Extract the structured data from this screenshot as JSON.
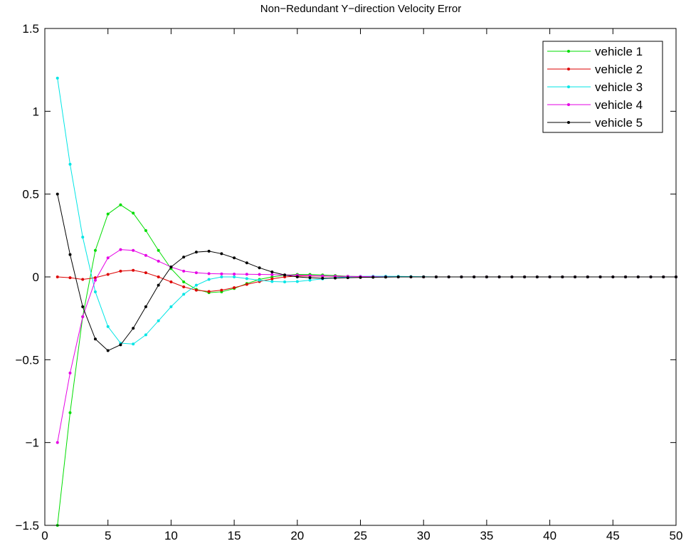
{
  "chart_data": {
    "type": "line",
    "title": "Non−Redundant Y−direction Velocity Error",
    "xlabel": "",
    "ylabel": "",
    "xlim": [
      0,
      50
    ],
    "ylim": [
      -1.5,
      1.5
    ],
    "xticks": [
      0,
      5,
      10,
      15,
      20,
      25,
      30,
      35,
      40,
      45,
      50
    ],
    "xtick_labels": [
      "0",
      "5",
      "10",
      "15",
      "20",
      "25",
      "30",
      "35",
      "40",
      "45",
      "50"
    ],
    "yticks": [
      -1.5,
      -1,
      -0.5,
      0,
      0.5,
      1,
      1.5
    ],
    "ytick_labels": [
      "−1.5",
      "−1",
      "−0.5",
      "0",
      "0.5",
      "1",
      "1.5"
    ],
    "grid": false,
    "legend_position": "top-right",
    "x": [
      1,
      2,
      3,
      4,
      5,
      6,
      7,
      8,
      9,
      10,
      11,
      12,
      13,
      14,
      15,
      16,
      17,
      18,
      19,
      20,
      21,
      22,
      23,
      24,
      25,
      26,
      27,
      28,
      29,
      30,
      31,
      32,
      33,
      34,
      35,
      36,
      37,
      38,
      39,
      40,
      41,
      42,
      43,
      44,
      45,
      46,
      47,
      48,
      49,
      50
    ],
    "series": [
      {
        "name": "vehicle 1",
        "color": "#00dd00",
        "values": [
          -1.5,
          -0.82,
          -0.24,
          0.16,
          0.38,
          0.435,
          0.385,
          0.28,
          0.16,
          0.05,
          -0.03,
          -0.075,
          -0.095,
          -0.09,
          -0.07,
          -0.04,
          -0.015,
          0.0,
          0.01,
          0.015,
          0.015,
          0.012,
          0.008,
          0.004,
          0.002,
          0.001,
          0,
          0,
          0,
          0,
          0,
          0,
          0,
          0,
          0,
          0,
          0,
          0,
          0,
          0,
          0,
          0,
          0,
          0,
          0,
          0,
          0,
          0,
          0,
          0
        ]
      },
      {
        "name": "vehicle 2",
        "color": "#dd0000",
        "values": [
          0,
          -0.005,
          -0.015,
          -0.005,
          0.015,
          0.035,
          0.04,
          0.025,
          0.0,
          -0.03,
          -0.06,
          -0.08,
          -0.088,
          -0.08,
          -0.065,
          -0.045,
          -0.028,
          -0.012,
          0.0,
          0.005,
          0.006,
          0.005,
          0.003,
          0.002,
          0.001,
          0,
          0,
          0,
          0,
          0,
          0,
          0,
          0,
          0,
          0,
          0,
          0,
          0,
          0,
          0,
          0,
          0,
          0,
          0,
          0,
          0,
          0,
          0,
          0,
          0
        ]
      },
      {
        "name": "vehicle 3",
        "color": "#00e5e5",
        "values": [
          1.2,
          0.68,
          0.24,
          -0.09,
          -0.3,
          -0.4,
          -0.405,
          -0.35,
          -0.265,
          -0.18,
          -0.105,
          -0.05,
          -0.015,
          0.0,
          0.0,
          -0.01,
          -0.02,
          -0.028,
          -0.03,
          -0.028,
          -0.02,
          -0.012,
          -0.005,
          0.0,
          0.003,
          0.004,
          0.004,
          0.003,
          0.002,
          0.001,
          0,
          0,
          0,
          0,
          0,
          0,
          0,
          0,
          0,
          0,
          0,
          0,
          0,
          0,
          0,
          0,
          0,
          0,
          0,
          0
        ]
      },
      {
        "name": "vehicle 4",
        "color": "#e500e5",
        "values": [
          -1.0,
          -0.58,
          -0.24,
          -0.02,
          0.115,
          0.165,
          0.16,
          0.13,
          0.095,
          0.06,
          0.035,
          0.025,
          0.02,
          0.018,
          0.017,
          0.016,
          0.015,
          0.014,
          0.012,
          0.01,
          0.008,
          0.006,
          0.004,
          0.003,
          0.002,
          0.001,
          0,
          0,
          0,
          0,
          0,
          0,
          0,
          0,
          0,
          0,
          0,
          0,
          0,
          0,
          0,
          0,
          0,
          0,
          0,
          0,
          0,
          0,
          0,
          0
        ]
      },
      {
        "name": "vehicle 5",
        "color": "#000000",
        "values": [
          0.5,
          0.135,
          -0.18,
          -0.375,
          -0.445,
          -0.41,
          -0.31,
          -0.18,
          -0.05,
          0.06,
          0.12,
          0.15,
          0.155,
          0.14,
          0.115,
          0.085,
          0.055,
          0.03,
          0.012,
          0.0,
          -0.005,
          -0.008,
          -0.007,
          -0.005,
          -0.003,
          -0.002,
          -0.001,
          0,
          0,
          0,
          0,
          0,
          0,
          0,
          0,
          0,
          0,
          0,
          0,
          0,
          0,
          0,
          0,
          0,
          0,
          0,
          0,
          0,
          0,
          0
        ]
      }
    ]
  }
}
